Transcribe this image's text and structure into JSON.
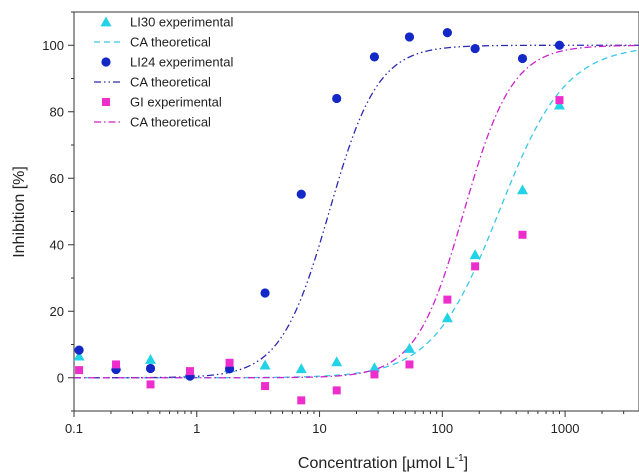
{
  "chart_data": {
    "type": "scatter",
    "xlabel": "Concentration [µmol L",
    "xlabel_sup": "-1",
    "xlabel_suffix": "]",
    "ylabel": "Inhibition [%]",
    "x_scale": "log",
    "xlim": [
      0.1,
      4000
    ],
    "ylim": [
      -10,
      110
    ],
    "x_ticks": [
      0.1,
      1,
      10,
      100,
      1000
    ],
    "x_tick_labels": [
      "0.1",
      "1",
      "10",
      "100",
      "1000"
    ],
    "y_ticks": [
      0,
      20,
      40,
      60,
      80,
      100
    ],
    "y_tick_labels": [
      "0",
      "20",
      "40",
      "60",
      "80",
      "100"
    ],
    "legend_position": "top-left",
    "series": [
      {
        "name": "LI30 experimental",
        "kind": "points",
        "marker": "triangle",
        "color": "#22d3e8",
        "x": [
          0.11,
          0.22,
          0.42,
          0.88,
          1.85,
          3.6,
          7.1,
          13.8,
          28,
          54,
          110,
          185,
          450,
          900
        ],
        "y": [
          6.5,
          3.5,
          5.5,
          1.5,
          3.0,
          3.8,
          2.7,
          4.8,
          3.0,
          8.8,
          18.0,
          37.0,
          56.5,
          82.0
        ]
      },
      {
        "name": "CA theoretical",
        "kind": "curve",
        "style": "dashed",
        "color": "#38c8e8",
        "ec50": 290,
        "hill": 1.6,
        "top": 100
      },
      {
        "name": "LI24 experimental",
        "kind": "points",
        "marker": "circle",
        "color": "#1428c8",
        "x": [
          0.11,
          0.22,
          0.42,
          0.88,
          1.85,
          3.6,
          7.1,
          13.8,
          28,
          54,
          110,
          185,
          450,
          900
        ],
        "y": [
          8.3,
          2.5,
          2.8,
          0.5,
          2.7,
          25.5,
          55.2,
          84.0,
          96.5,
          102.5,
          103.8,
          99.0,
          96.0,
          100.0
        ]
      },
      {
        "name": "CA theoretical",
        "kind": "curve",
        "style": "dashdotdot",
        "color": "#2a2ab0",
        "ec50": 12,
        "hill": 2.2,
        "top": 100
      },
      {
        "name": "GI experimental",
        "kind": "points",
        "marker": "square",
        "color": "#ee2ecc",
        "x": [
          0.11,
          0.22,
          0.42,
          0.88,
          1.85,
          3.6,
          7.1,
          13.8,
          28,
          54,
          110,
          185,
          450,
          900
        ],
        "y": [
          2.3,
          4.0,
          -2.0,
          2.0,
          4.5,
          -2.5,
          -6.8,
          -3.8,
          1.0,
          4.0,
          23.5,
          33.5,
          43.0,
          83.5
        ]
      },
      {
        "name": "CA theoretical",
        "kind": "curve",
        "style": "dashdot",
        "color": "#cc22cc",
        "ec50": 150,
        "hill": 2.2,
        "top": 100
      }
    ]
  }
}
